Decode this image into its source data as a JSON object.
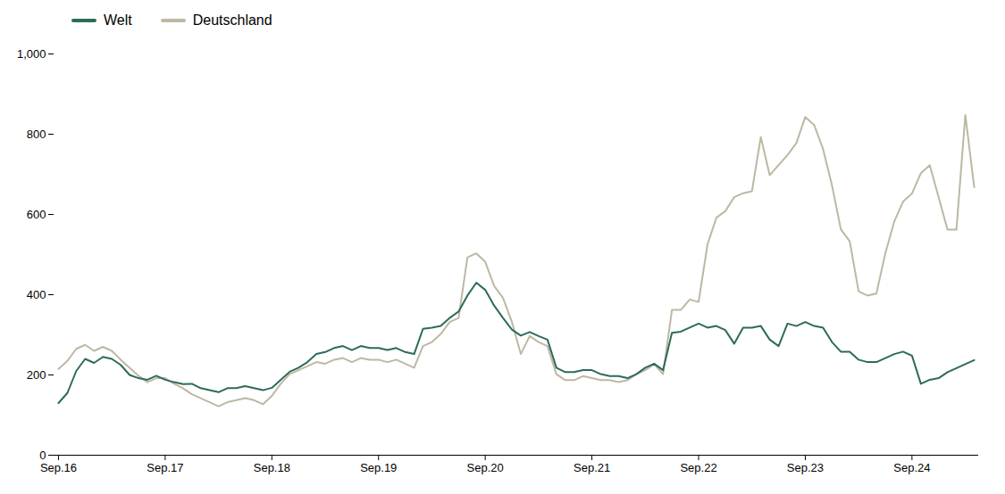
{
  "chart_data": {
    "type": "line",
    "categories": [
      "Sep.16",
      null,
      null,
      null,
      null,
      null,
      null,
      null,
      null,
      null,
      null,
      null,
      "Sep.17",
      null,
      null,
      null,
      null,
      null,
      null,
      null,
      null,
      null,
      null,
      null,
      "Sep.18",
      null,
      null,
      null,
      null,
      null,
      null,
      null,
      null,
      null,
      null,
      null,
      "Sep.19",
      null,
      null,
      null,
      null,
      null,
      null,
      null,
      null,
      null,
      null,
      null,
      "Sep.20",
      null,
      null,
      null,
      null,
      null,
      null,
      null,
      null,
      null,
      null,
      null,
      "Sep.21",
      null,
      null,
      null,
      null,
      null,
      null,
      null,
      null,
      null,
      null,
      null,
      "Sep.22",
      null,
      null,
      null,
      null,
      null,
      null,
      null,
      null,
      null,
      null,
      null,
      "Sep.23",
      null,
      null,
      null,
      null,
      null,
      null,
      null,
      null,
      null,
      null,
      null,
      "Sep.24",
      null,
      null,
      null,
      null,
      null,
      null,
      null
    ],
    "series": [
      {
        "name": "Welt",
        "color": "#2d6b5a",
        "values": [
          130,
          155,
          210,
          240,
          230,
          245,
          240,
          225,
          200,
          192,
          188,
          198,
          188,
          182,
          177,
          178,
          167,
          162,
          157,
          167,
          167,
          172,
          167,
          162,
          168,
          188,
          208,
          218,
          232,
          252,
          257,
          267,
          272,
          262,
          272,
          267,
          267,
          262,
          267,
          257,
          252,
          315,
          318,
          322,
          342,
          358,
          398,
          430,
          412,
          373,
          342,
          313,
          298,
          307,
          297,
          288,
          218,
          207,
          207,
          212,
          212,
          202,
          197,
          197,
          192,
          202,
          218,
          228,
          212,
          305,
          308,
          318,
          328,
          318,
          322,
          312,
          278,
          318,
          318,
          322,
          288,
          272,
          328,
          322,
          332,
          322,
          318,
          282,
          258,
          258,
          238,
          232,
          232,
          242,
          252,
          258,
          248,
          178,
          188,
          192,
          207,
          217,
          227,
          237
        ]
      },
      {
        "name": "Deutschland",
        "color": "#bdb8a4",
        "values": [
          215,
          235,
          265,
          275,
          260,
          270,
          260,
          238,
          218,
          198,
          182,
          192,
          192,
          178,
          167,
          152,
          142,
          132,
          122,
          132,
          137,
          142,
          137,
          127,
          148,
          178,
          202,
          212,
          222,
          232,
          228,
          238,
          242,
          232,
          242,
          238,
          238,
          232,
          238,
          228,
          218,
          272,
          282,
          302,
          332,
          342,
          493,
          503,
          482,
          422,
          392,
          332,
          252,
          297,
          282,
          272,
          202,
          187,
          187,
          197,
          192,
          187,
          187,
          182,
          187,
          202,
          212,
          227,
          202,
          362,
          362,
          388,
          382,
          525,
          592,
          608,
          643,
          653,
          658,
          793,
          698,
          723,
          748,
          778,
          843,
          823,
          763,
          673,
          563,
          533,
          408,
          398,
          403,
          503,
          582,
          632,
          652,
          703,
          723,
          643,
          562,
          562,
          848,
          668
        ]
      }
    ],
    "ylim": [
      0,
      1000
    ],
    "yticks": [
      0,
      200,
      400,
      600,
      800,
      1000
    ],
    "grid": false,
    "legend": "top"
  }
}
